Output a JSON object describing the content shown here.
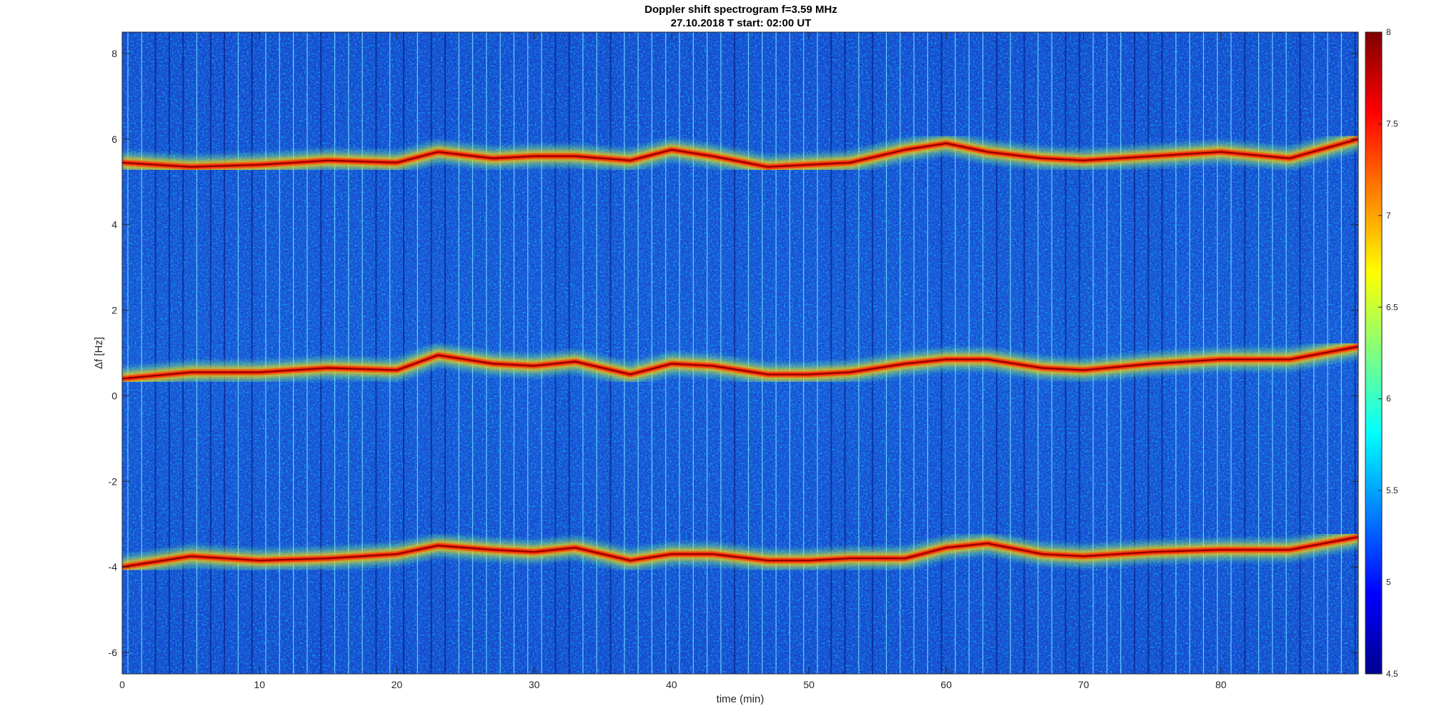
{
  "chart_data": {
    "type": "heatmap",
    "title": "Doppler shift spectrogram f=3.59 MHz",
    "subtitle": "27.10.2018   T start: 02:00 UT",
    "xlabel": "time (min)",
    "ylabel": "Δf [Hz]",
    "xlim": [
      0,
      90
    ],
    "ylim": [
      -6.5,
      8.5
    ],
    "xticks": [
      0,
      10,
      20,
      30,
      40,
      50,
      60,
      70,
      80
    ],
    "yticks": [
      -6,
      -4,
      -2,
      0,
      2,
      4,
      6,
      8
    ],
    "colormap": "jet",
    "color_range": [
      4.5,
      8
    ],
    "colorbar_ticks": [
      4.5,
      5,
      5.5,
      6,
      6.5,
      7,
      7.5,
      8
    ],
    "grid": false,
    "traces": [
      {
        "x": [
          0,
          5,
          10,
          15,
          20,
          23,
          27,
          30,
          33,
          37,
          40,
          43,
          47,
          50,
          53,
          57,
          60,
          63,
          67,
          70,
          75,
          80,
          85,
          90
        ],
        "y": [
          5.45,
          5.35,
          5.4,
          5.5,
          5.45,
          5.7,
          5.55,
          5.6,
          5.6,
          5.5,
          5.75,
          5.6,
          5.35,
          5.4,
          5.45,
          5.75,
          5.9,
          5.7,
          5.55,
          5.5,
          5.6,
          5.7,
          5.55,
          6.0
        ]
      },
      {
        "x": [
          0,
          5,
          10,
          15,
          20,
          23,
          27,
          30,
          33,
          37,
          40,
          43,
          47,
          50,
          53,
          57,
          60,
          63,
          67,
          70,
          75,
          80,
          85,
          90
        ],
        "y": [
          0.4,
          0.55,
          0.55,
          0.65,
          0.6,
          0.95,
          0.75,
          0.7,
          0.8,
          0.5,
          0.75,
          0.7,
          0.5,
          0.5,
          0.55,
          0.75,
          0.85,
          0.85,
          0.65,
          0.6,
          0.75,
          0.85,
          0.85,
          1.15
        ]
      },
      {
        "x": [
          0,
          5,
          10,
          15,
          20,
          23,
          27,
          30,
          33,
          37,
          40,
          43,
          47,
          50,
          53,
          57,
          60,
          63,
          67,
          70,
          75,
          80,
          85,
          90
        ],
        "y": [
          -4.0,
          -3.75,
          -3.85,
          -3.8,
          -3.7,
          -3.5,
          -3.6,
          -3.65,
          -3.55,
          -3.85,
          -3.7,
          -3.7,
          -3.85,
          -3.85,
          -3.8,
          -3.8,
          -3.55,
          -3.45,
          -3.7,
          -3.75,
          -3.65,
          -3.6,
          -3.6,
          -3.3
        ]
      }
    ]
  }
}
